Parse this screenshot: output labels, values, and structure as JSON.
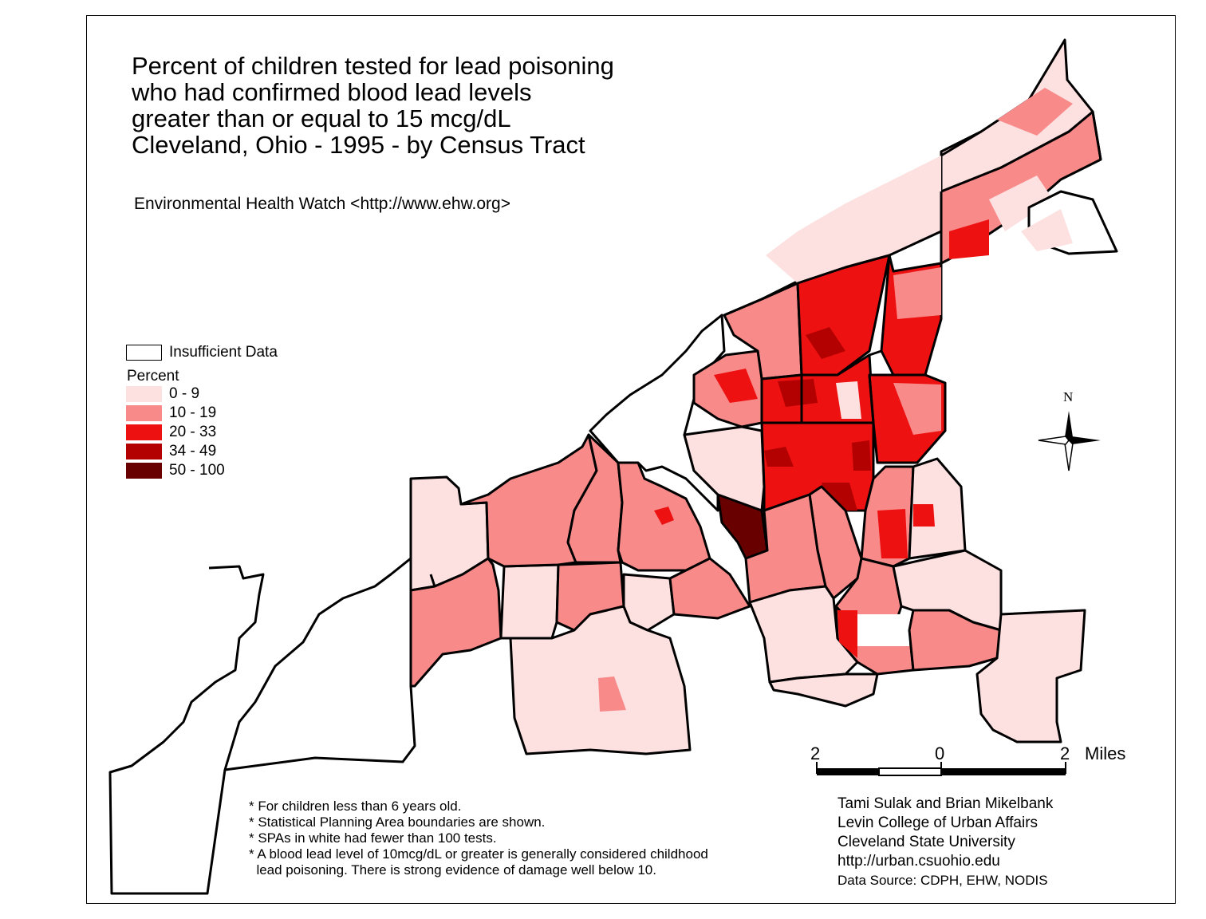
{
  "title": {
    "lines": [
      "Percent of children tested for lead poisoning",
      "who had confirmed blood lead levels",
      "greater than or equal to 15 mcg/dL",
      "Cleveland, Ohio - 1995 - by Census Tract"
    ]
  },
  "subtitle": "Environmental Health Watch <http://www.ehw.org>",
  "legend": {
    "insufficient_label": "Insufficient Data",
    "heading": "Percent",
    "classes": [
      {
        "label": "0 - 9",
        "color": "#fde0e0"
      },
      {
        "label": "10 - 19",
        "color": "#f88a8a"
      },
      {
        "label": "20 - 33",
        "color": "#ee1111"
      },
      {
        "label": "34 - 49",
        "color": "#b30000"
      },
      {
        "label": "50 - 100",
        "color": "#680000"
      }
    ]
  },
  "north_arrow": {
    "label": "N"
  },
  "scale_bar": {
    "left_label": "2",
    "center_label": "0",
    "right_label": "2",
    "unit": "Miles"
  },
  "notes": [
    "* For children less than 6 years old.",
    "* Statistical Planning Area boundaries are shown.",
    "* SPAs in white had fewer than 100 tests.",
    "* A blood lead level of 10mcg/dL or greater is generally considered childhood",
    "  lead poisoning. There is strong evidence of damage well below 10."
  ],
  "credits": [
    "Tami Sulak and Brian Mikelbank",
    "Levin College of Urban Affairs",
    "Cleveland State University",
    "http://urban.csuohio.edu"
  ],
  "data_source": "Data Source: CDPH, EHW, NODIS"
}
